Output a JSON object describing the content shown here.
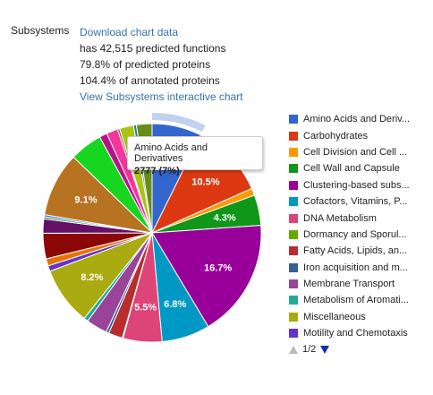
{
  "header": {
    "label": "Subsystems",
    "download_link": "Download chart data",
    "stat_functions": "has 42,515 predicted functions",
    "stat_predicted": "79.8% of predicted proteins",
    "stat_annotated": "104.4% of annotated proteins",
    "interactive_link": "View Subsystems interactive chart"
  },
  "tooltip": {
    "name": "Amino Acids and Derivatives",
    "value": "2777 (7%)"
  },
  "legend": {
    "items": [
      {
        "label": "Amino Acids and Deriv...",
        "color": "#3366cc"
      },
      {
        "label": "Carbohydrates",
        "color": "#dc3912"
      },
      {
        "label": "Cell Division and Cell ...",
        "color": "#ff9900"
      },
      {
        "label": "Cell Wall and Capsule",
        "color": "#109618"
      },
      {
        "label": "Clustering-based subs...",
        "color": "#990099"
      },
      {
        "label": "Cofactors, Vitamins, P...",
        "color": "#0099c6"
      },
      {
        "label": "DNA Metabolism",
        "color": "#dd4477"
      },
      {
        "label": "Dormancy and Sporul...",
        "color": "#66aa00"
      },
      {
        "label": "Fatty Acids, Lipids, an...",
        "color": "#b82e2e"
      },
      {
        "label": "Iron acquisition and m...",
        "color": "#316395"
      },
      {
        "label": "Membrane Transport",
        "color": "#994499"
      },
      {
        "label": "Metabolism of Aromati...",
        "color": "#22aa99"
      },
      {
        "label": "Miscellaneous",
        "color": "#aaaa11"
      },
      {
        "label": "Motility and Chemotaxis",
        "color": "#6633cc"
      }
    ],
    "page": "1/2"
  },
  "chart_data": {
    "type": "pie",
    "slices": [
      {
        "name": "Amino Acids and Derivatives",
        "value": 7.0,
        "color": "#3366cc",
        "label": ""
      },
      {
        "name": "Carbohydrates",
        "value": 10.5,
        "color": "#dc3912",
        "label": "10.5%"
      },
      {
        "name": "Cell Division and Cell Cycle",
        "value": 1.0,
        "color": "#ff9900",
        "label": ""
      },
      {
        "name": "Cell Wall and Capsule",
        "value": 4.3,
        "color": "#109618",
        "label": "4.3%"
      },
      {
        "name": "Clustering-based subsystems",
        "value": 16.7,
        "color": "#990099",
        "label": "16.7%"
      },
      {
        "name": "Cofactors, Vitamins, Prosthetic Groups",
        "value": 6.8,
        "color": "#0099c6",
        "label": "6.8%"
      },
      {
        "name": "DNA Metabolism",
        "value": 5.5,
        "color": "#dd4477",
        "label": "5.5%"
      },
      {
        "name": "Dormancy and Sporulation",
        "value": 0.1,
        "color": "#66aa00",
        "label": ""
      },
      {
        "name": "Fatty Acids, Lipids, and Isoprenoids",
        "value": 2.0,
        "color": "#b82e2e",
        "label": ""
      },
      {
        "name": "Iron acquisition and metabolism",
        "value": 0.4,
        "color": "#316395",
        "label": ""
      },
      {
        "name": "Membrane Transport",
        "value": 3.0,
        "color": "#994499",
        "label": ""
      },
      {
        "name": "Metabolism of Aromatic Compounds",
        "value": 0.6,
        "color": "#22aa99",
        "label": ""
      },
      {
        "name": "Miscellaneous",
        "value": 8.2,
        "color": "#aaaa11",
        "label": "8.2%"
      },
      {
        "name": "Motility and Chemotaxis",
        "value": 0.8,
        "color": "#6633cc",
        "label": ""
      },
      {
        "name": "",
        "value": 1.0,
        "color": "#e67300",
        "label": ""
      },
      {
        "name": "",
        "value": 3.6,
        "color": "#8b0707",
        "label": ""
      },
      {
        "name": "",
        "value": 2.0,
        "color": "#651067",
        "label": ""
      },
      {
        "name": "",
        "value": 0.3,
        "color": "#329262",
        "label": ""
      },
      {
        "name": "",
        "value": 0.3,
        "color": "#5574a6",
        "label": ""
      },
      {
        "name": "",
        "value": 9.1,
        "color": "#b77322",
        "label": "9.1%"
      },
      {
        "name": "",
        "value": 4.6,
        "color": "#16d620",
        "label": ""
      },
      {
        "name": "",
        "value": 1.1,
        "color": "#b91383",
        "label": ""
      },
      {
        "name": "",
        "value": 1.6,
        "color": "#f4359e",
        "label": ""
      },
      {
        "name": "",
        "value": 0.3,
        "color": "#9c5935",
        "label": ""
      },
      {
        "name": "",
        "value": 2.0,
        "color": "#a9c413",
        "label": ""
      },
      {
        "name": "",
        "value": 0.4,
        "color": "#2a778d",
        "label": ""
      },
      {
        "name": "",
        "value": 2.2,
        "color": "#668d1c",
        "label": ""
      }
    ],
    "highlighted": "Amino Acids and Derivatives"
  }
}
